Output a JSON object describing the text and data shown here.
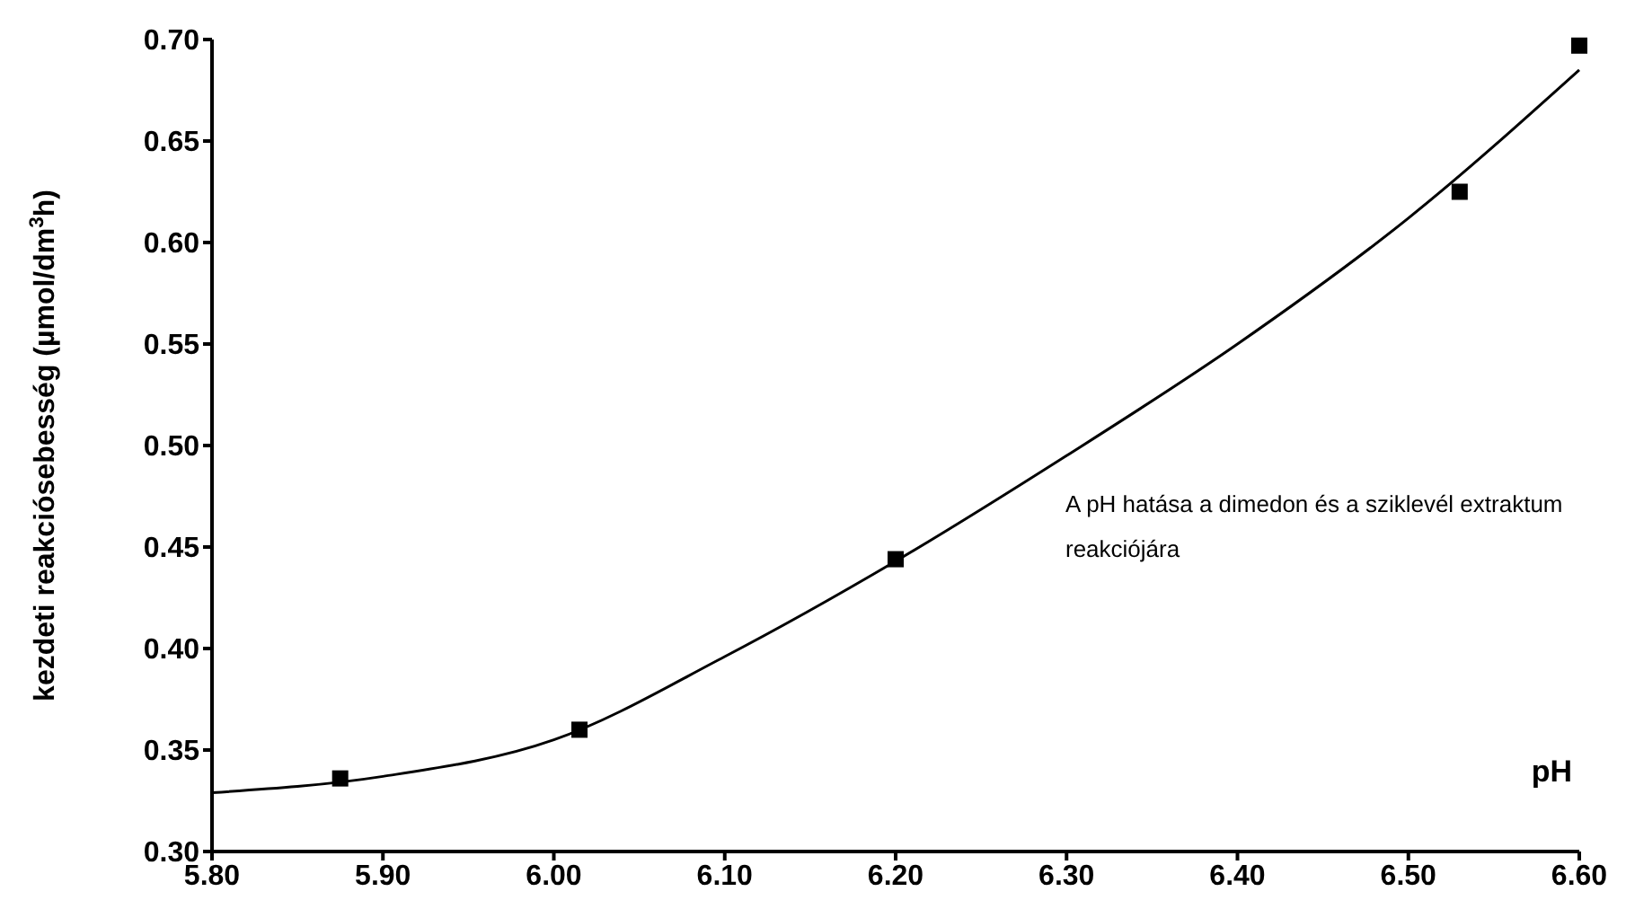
{
  "chart_data": {
    "type": "scatter",
    "xlabel": "pH",
    "ylabel": "kezdeti reakciósebesség (µmol/dm$^{3}$h)",
    "annotations": [
      "A pH hatása a dimedon és a sziklevél extraktum reakciójára"
    ],
    "xlim": [
      5.8,
      6.6
    ],
    "xticks": [
      {
        "value": 5.8,
        "label": "5.80"
      },
      {
        "value": 5.9,
        "label": "5.90"
      },
      {
        "value": 6.0,
        "label": "6.00"
      },
      {
        "value": 6.1,
        "label": "6.10"
      },
      {
        "value": 6.2,
        "label": "6.20"
      },
      {
        "value": 6.3,
        "label": "6.30"
      },
      {
        "value": 6.4,
        "label": "6.40"
      },
      {
        "value": 6.5,
        "label": "6.50"
      },
      {
        "value": 6.6,
        "label": "6.60"
      }
    ],
    "ylim": [
      0.3,
      0.7
    ],
    "yticks": [
      {
        "value": 0.3,
        "label": "0.30"
      },
      {
        "value": 0.35,
        "label": "0.35"
      },
      {
        "value": 0.4,
        "label": "0.40"
      },
      {
        "value": 0.45,
        "label": "0.45"
      },
      {
        "value": 0.5,
        "label": "0.50"
      },
      {
        "value": 0.55,
        "label": "0.55"
      },
      {
        "value": 0.6,
        "label": "0.60"
      },
      {
        "value": 0.65,
        "label": "0.65"
      },
      {
        "value": 0.7,
        "label": "0.70"
      }
    ],
    "grid": false,
    "legend": false,
    "series": [
      {
        "color": "#000000",
        "marker": "square",
        "x": [
          5.875,
          6.015,
          6.2,
          6.53,
          6.6
        ],
        "values": [
          0.336,
          0.36,
          0.444,
          0.625,
          0.697
        ]
      },
      {
        "type": "line",
        "color": "#000000",
        "marker": "none",
        "line_style": "solid",
        "x": [
          5.8,
          5.9,
          6.0,
          6.1,
          6.2,
          6.3,
          6.4,
          6.5,
          6.6
        ],
        "values": [
          0.329,
          0.337,
          0.355,
          0.396,
          0.443,
          0.495,
          0.55,
          0.612,
          0.685
        ]
      }
    ]
  }
}
